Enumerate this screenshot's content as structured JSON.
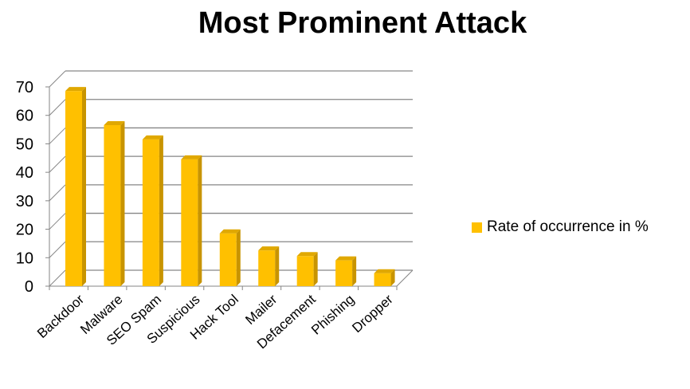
{
  "chart_data": {
    "type": "bar",
    "title": "Most Prominent Attack",
    "categories": [
      "Backdoor",
      "Malware",
      "SEO Spam",
      "Suspicious",
      "Hack Tool",
      "Mailer",
      "Defacement",
      "Phishing",
      "Dropper"
    ],
    "series": [
      {
        "name": "Rate of occurrence in %",
        "values": [
          68,
          56,
          51,
          44,
          18,
          12,
          10,
          8.5,
          4
        ]
      }
    ],
    "xlabel": "",
    "ylabel": "",
    "ylim": [
      0,
      70
    ],
    "yticks": [
      "0",
      "10",
      "20",
      "30",
      "40",
      "50",
      "60",
      "70"
    ],
    "grid": true,
    "legend": "right",
    "bar_color": "#FFC000",
    "style": "3d-column"
  }
}
